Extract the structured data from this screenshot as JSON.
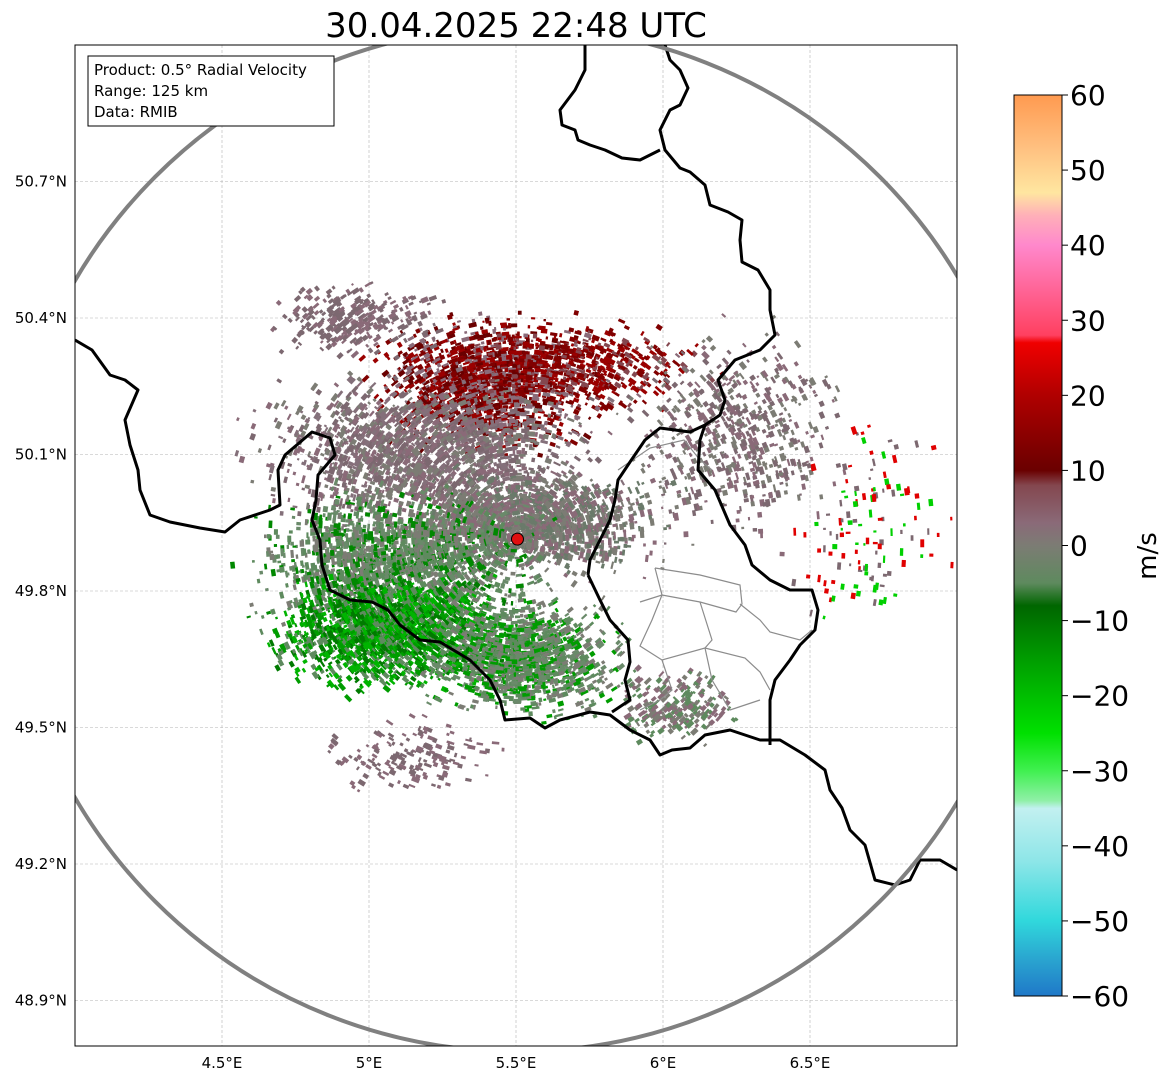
{
  "title": "30.04.2025 22:48 UTC",
  "info_box": {
    "product": "Product: 0.5° Radial Velocity",
    "range": "Range: 125 km",
    "data": "Data: RMIB"
  },
  "axes": {
    "x_ticks": [
      "4.5°E",
      "5°E",
      "5.5°E",
      "6°E",
      "6.5°E"
    ],
    "y_ticks": [
      "50.7°N",
      "50.4°N",
      "50.1°N",
      "49.8°N",
      "49.5°N",
      "49.2°N",
      "48.9°N"
    ],
    "x_tick_values": [
      4.5,
      5.0,
      5.5,
      6.0,
      6.5
    ],
    "y_tick_values": [
      50.7,
      50.4,
      50.1,
      49.8,
      49.5,
      49.2,
      48.9
    ],
    "lon_range": [
      4.0,
      7.0
    ],
    "lat_range": [
      48.8,
      51.0
    ],
    "grid": true
  },
  "radar": {
    "lon": 5.505,
    "lat": 49.914,
    "range_km": 125,
    "marker_color": "#e01010",
    "range_ring_color": "#808080"
  },
  "colorbar": {
    "label": "m/s",
    "min": -60,
    "max": 60,
    "ticks": [
      "60",
      "50",
      "40",
      "30",
      "20",
      "10",
      "0",
      "−10",
      "−20",
      "−30",
      "−40",
      "−50",
      "−60"
    ],
    "tick_values": [
      60,
      50,
      40,
      30,
      20,
      10,
      0,
      -10,
      -20,
      -30,
      -40,
      -50,
      -60
    ],
    "stops": [
      {
        "v": -60,
        "c": "#1f78c8"
      },
      {
        "v": -55,
        "c": "#2aa6d0"
      },
      {
        "v": -50,
        "c": "#30d8dc"
      },
      {
        "v": -42,
        "c": "#8ee6e8"
      },
      {
        "v": -35,
        "c": "#c2f0f0"
      },
      {
        "v": -34,
        "c": "#90f0a8"
      },
      {
        "v": -30,
        "c": "#40f050"
      },
      {
        "v": -25,
        "c": "#00e000"
      },
      {
        "v": -15,
        "c": "#009c00"
      },
      {
        "v": -8,
        "c": "#006600"
      },
      {
        "v": -5,
        "c": "#5e8a5e"
      },
      {
        "v": 0,
        "c": "#7c7c74"
      },
      {
        "v": 3,
        "c": "#8a6a78"
      },
      {
        "v": 8,
        "c": "#84474f"
      },
      {
        "v": 10,
        "c": "#6a0000"
      },
      {
        "v": 20,
        "c": "#b00000"
      },
      {
        "v": 27,
        "c": "#f00000"
      },
      {
        "v": 28,
        "c": "#ff4060"
      },
      {
        "v": 40,
        "c": "#ff88cc"
      },
      {
        "v": 44,
        "c": "#ffb0b8"
      },
      {
        "v": 47,
        "c": "#ffe6a0"
      },
      {
        "v": 53,
        "c": "#ffc080"
      },
      {
        "v": 60,
        "c": "#ff9a50"
      }
    ]
  },
  "velocity_regions": [
    {
      "lon": 5.4,
      "lat": 50.26,
      "rx": 0.46,
      "ry": 0.18,
      "n": 1500,
      "colors": [
        "#800000",
        "#6a0000",
        "#9a0000",
        "#8a6a78"
      ]
    },
    {
      "lon": 5.72,
      "lat": 50.3,
      "rx": 0.5,
      "ry": 0.12,
      "n": 500,
      "colors": [
        "#800000",
        "#9a0000",
        "#84474f"
      ]
    },
    {
      "lon": 5.2,
      "lat": 50.1,
      "rx": 0.7,
      "ry": 0.22,
      "n": 1800,
      "colors": [
        "#7c6870",
        "#8a6a78",
        "#84707a",
        "#7c7c74"
      ]
    },
    {
      "lon": 5.55,
      "lat": 49.95,
      "rx": 0.55,
      "ry": 0.15,
      "n": 1400,
      "colors": [
        "#7c7c74",
        "#6a7a6a",
        "#8a6a78"
      ]
    },
    {
      "lon": 5.1,
      "lat": 49.85,
      "rx": 0.6,
      "ry": 0.2,
      "n": 1900,
      "colors": [
        "#5e8a5e",
        "#6a8a6a",
        "#7c7c74",
        "#008800"
      ]
    },
    {
      "lon": 5.1,
      "lat": 49.7,
      "rx": 0.55,
      "ry": 0.15,
      "n": 1700,
      "colors": [
        "#009c00",
        "#00b400",
        "#007a00",
        "#5e8a5e"
      ]
    },
    {
      "lon": 5.55,
      "lat": 49.65,
      "rx": 0.4,
      "ry": 0.16,
      "n": 1300,
      "colors": [
        "#5e8a5e",
        "#6a8a6a",
        "#7c7c74",
        "#009c00"
      ]
    },
    {
      "lon": 6.25,
      "lat": 50.15,
      "rx": 0.45,
      "ry": 0.28,
      "n": 600,
      "colors": [
        "#7c6870",
        "#8a6a78",
        "#7c7c74"
      ]
    },
    {
      "lon": 6.05,
      "lat": 49.55,
      "rx": 0.25,
      "ry": 0.1,
      "n": 260,
      "colors": [
        "#7c7c74",
        "#8a6a78",
        "#5e8a5e"
      ]
    },
    {
      "lon": 5.15,
      "lat": 49.43,
      "rx": 0.4,
      "ry": 0.1,
      "n": 160,
      "colors": [
        "#7c6870",
        "#8a6a78"
      ]
    },
    {
      "lon": 4.95,
      "lat": 50.4,
      "rx": 0.35,
      "ry": 0.1,
      "n": 300,
      "colors": [
        "#7c6870",
        "#8a6a78"
      ]
    },
    {
      "lon": 6.7,
      "lat": 49.95,
      "rx": 0.35,
      "ry": 0.3,
      "n": 130,
      "colors": [
        "#7c6870",
        "#e00000",
        "#00d000"
      ]
    }
  ]
}
